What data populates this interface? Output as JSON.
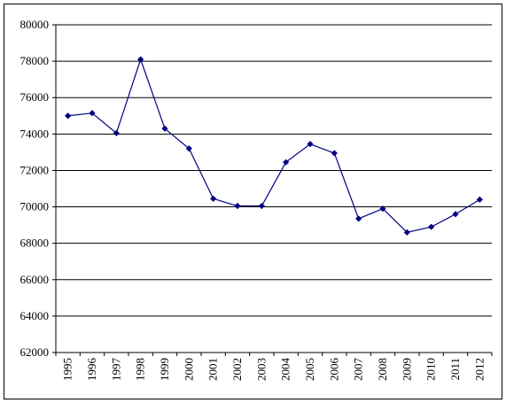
{
  "chart_data": {
    "type": "line",
    "title": "",
    "xlabel": "",
    "ylabel": "",
    "x": [
      "1995",
      "1996",
      "1997",
      "1998",
      "1999",
      "2000",
      "2001",
      "2002",
      "2003",
      "2004",
      "2005",
      "2006",
      "2007",
      "2008",
      "2009",
      "2010",
      "2011",
      "2012"
    ],
    "series": [
      {
        "values": [
          75000,
          75150,
          74050,
          78100,
          74300,
          73200,
          70450,
          70050,
          70050,
          72450,
          73450,
          72950,
          69350,
          69900,
          68600,
          68900,
          69600,
          70400
        ],
        "color": "#000080"
      }
    ],
    "ylim": [
      62000,
      80000
    ],
    "yticks": [
      62000,
      64000,
      66000,
      68000,
      70000,
      72000,
      74000,
      76000,
      78000,
      80000
    ],
    "grid": "horizontal",
    "legend": "none",
    "marker": "diamond"
  }
}
